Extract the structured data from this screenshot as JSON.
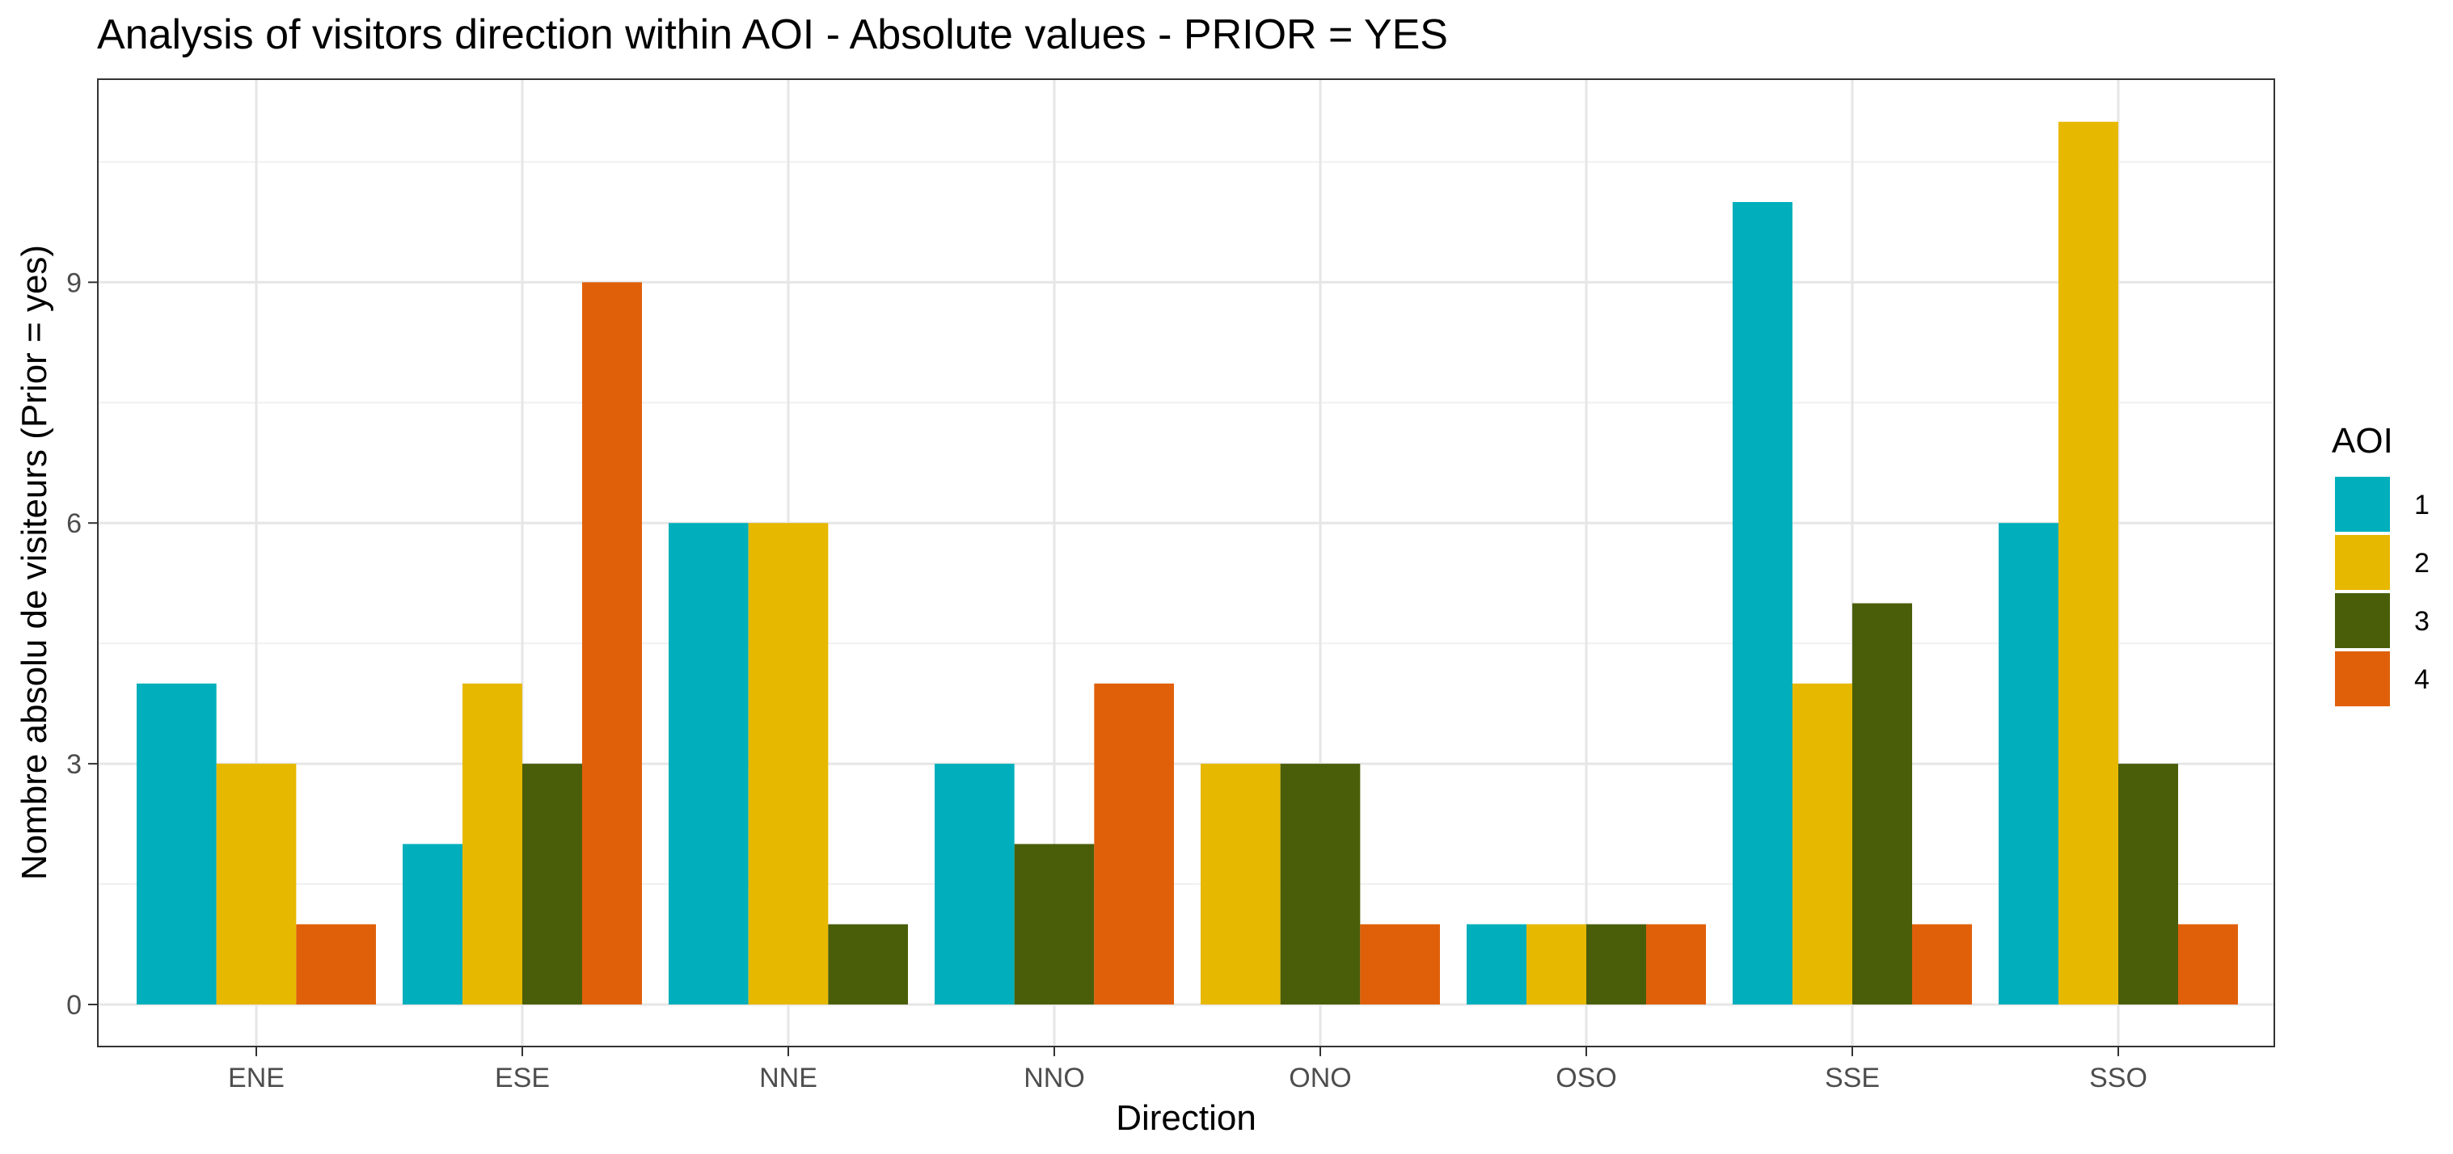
{
  "chart_data": {
    "type": "bar",
    "title": "Analysis of visitors direction within AOI - Absolute values - PRIOR = YES",
    "xlabel": "Direction",
    "ylabel": "Nombre absolu de visiteurs (Prior = yes)",
    "ylim": [
      0,
      11
    ],
    "yticks": [
      0,
      3,
      6,
      9
    ],
    "grid": true,
    "legend": {
      "title": "AOI",
      "position": "right"
    },
    "categories": [
      "ENE",
      "ESE",
      "NNE",
      "NNO",
      "ONO",
      "OSO",
      "SSE",
      "SSO"
    ],
    "series": [
      {
        "name": "1",
        "color": "#00AFBB",
        "values": [
          4,
          2,
          6,
          3,
          0,
          1,
          10,
          6
        ]
      },
      {
        "name": "2",
        "color": "#E7B800",
        "values": [
          3,
          4,
          6,
          0,
          3,
          1,
          4,
          11
        ]
      },
      {
        "name": "3",
        "color": "#4A5E0A",
        "values": [
          0,
          3,
          1,
          2,
          3,
          1,
          5,
          3
        ]
      },
      {
        "name": "4",
        "color": "#E0600A",
        "values": [
          1,
          9,
          0,
          4,
          1,
          1,
          1,
          1
        ]
      }
    ]
  }
}
